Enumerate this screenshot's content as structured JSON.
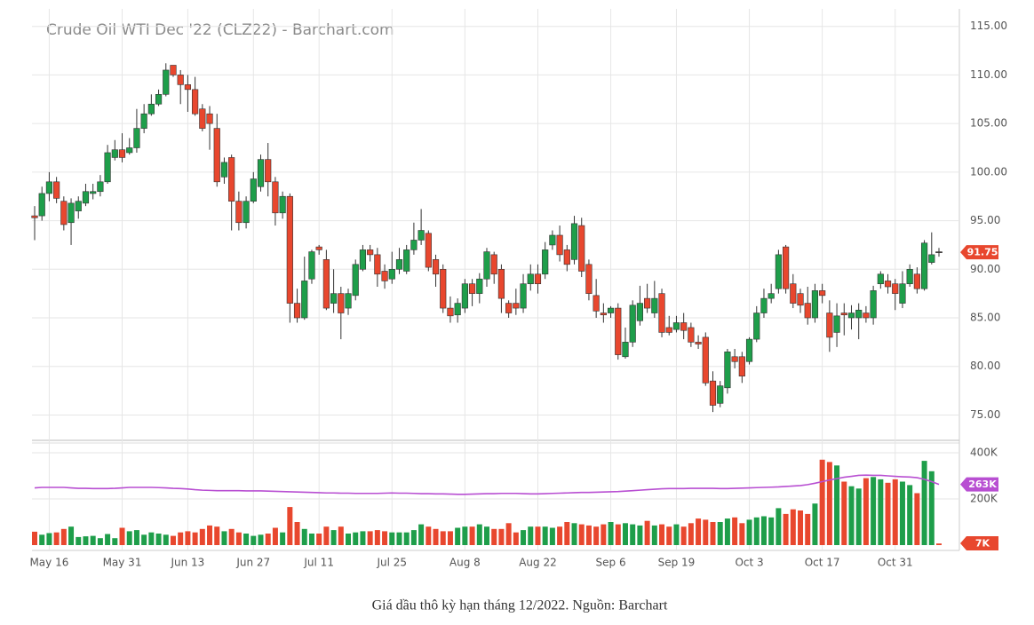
{
  "chart_data": {
    "type": "candlestick",
    "title": "Crude Oil WTI Dec '22 (CLZ22) - Barchart.com",
    "categories": [
      null,
      null,
      "May 16",
      null,
      null,
      null,
      null,
      null,
      null,
      null,
      null,
      null,
      "May 31",
      null,
      null,
      null,
      null,
      null,
      null,
      null,
      null,
      "Jun 13",
      null,
      null,
      null,
      null,
      null,
      null,
      null,
      null,
      "Jun 27",
      null,
      null,
      null,
      null,
      null,
      null,
      null,
      null,
      "Jul 11",
      null,
      null,
      null,
      null,
      null,
      null,
      null,
      null,
      null,
      "Jul 25",
      null,
      null,
      null,
      null,
      null,
      null,
      null,
      null,
      null,
      "Aug 8",
      null,
      null,
      null,
      null,
      null,
      null,
      null,
      null,
      null,
      "Aug 22",
      null,
      null,
      null,
      null,
      null,
      null,
      null,
      null,
      null,
      "Sep 6",
      null,
      null,
      null,
      null,
      null,
      null,
      null,
      null,
      "Sep 19",
      null,
      null,
      null,
      null,
      null,
      null,
      null,
      null,
      null,
      "Oct 3",
      null,
      null,
      null,
      null,
      null,
      null,
      null,
      null,
      null,
      "Oct 17",
      null,
      null,
      null,
      null,
      null,
      null,
      null,
      null,
      null,
      "Oct 31",
      null,
      null,
      null,
      null,
      null,
      null
    ],
    "up_color": "#1e9e4a",
    "down_color": "#e8472e",
    "open": [
      95.5,
      95.5,
      97.8,
      99,
      97,
      94.8,
      96,
      96.8,
      97.8,
      98,
      99,
      101.5,
      102.3,
      102,
      102.5,
      104.5,
      106,
      107,
      108,
      111,
      110,
      109,
      108.5,
      106.5,
      106,
      104.5,
      99.5,
      101.5,
      97,
      94.8,
      97,
      98.5,
      101.3,
      99,
      95.8,
      97.5,
      86.5,
      85,
      89,
      92.3,
      91,
      86.5,
      87.5,
      86,
      87.3,
      90,
      92,
      91.5,
      89.8,
      89,
      90,
      89.8,
      92,
      93,
      93.7,
      91,
      90,
      86,
      85.3,
      86,
      88.5,
      87.5,
      89,
      91.5,
      90,
      86.5,
      86.5,
      86,
      88.5,
      89.5,
      89.5,
      92.5,
      93.5,
      92,
      91,
      94.5,
      90.5,
      87.3,
      85.5,
      85.5,
      86,
      81,
      82.5,
      84.7,
      87,
      85.5,
      87.5,
      84,
      83.8,
      84.5,
      84,
      82.5,
      83,
      78.5,
      76.2,
      77.8,
      81,
      81,
      80.5,
      82.8,
      85.5,
      87,
      88,
      92.3,
      88.5,
      87.5,
      86.5,
      85,
      87.8,
      85.5,
      83.5,
      85.5,
      85,
      85,
      85.5,
      85,
      88.5,
      88.8,
      88.5,
      86.5,
      88.5,
      89.5,
      88,
      90.7,
      91.8
    ],
    "high": [
      96.5,
      98.5,
      100,
      99.5,
      97.5,
      97.3,
      97.5,
      98.8,
      98.8,
      99.7,
      102.8,
      103.3,
      104,
      103.5,
      106.5,
      107,
      108,
      108.5,
      111.2,
      111,
      110.5,
      110,
      109.8,
      107,
      106.8,
      106,
      101.5,
      101.8,
      98,
      97.5,
      100,
      101.8,
      103,
      99.5,
      98,
      97.8,
      88,
      91.3,
      92,
      92.5,
      92,
      90,
      88.2,
      88,
      91,
      92.5,
      92.5,
      92.2,
      90.5,
      91.8,
      92.2,
      92.5,
      94.8,
      96.2,
      94,
      91.5,
      90.5,
      87.2,
      87,
      89,
      89,
      89.6,
      92.2,
      91.8,
      90.5,
      86.8,
      88,
      89.5,
      90.5,
      90.5,
      92.8,
      94,
      94.5,
      92.5,
      95.5,
      95.3,
      91,
      89,
      86.5,
      86.2,
      86.5,
      84,
      86.8,
      88.3,
      88.5,
      88.8,
      88,
      85.2,
      85.2,
      85.5,
      84.5,
      83.2,
      83.5,
      79.5,
      78.5,
      81.8,
      81.8,
      81.5,
      83,
      86.2,
      88,
      88.5,
      92,
      92.5,
      89.5,
      88,
      88.2,
      88.5,
      88.5,
      86.8,
      86.5,
      86.5,
      86.3,
      86.5,
      86.2,
      88.3,
      89.8,
      89.5,
      89,
      89.8,
      90.5,
      90.2,
      93,
      93.8,
      92.2
    ],
    "low": [
      93,
      95,
      97,
      96.8,
      94,
      92.5,
      95.2,
      96.5,
      97.2,
      97.5,
      98.8,
      101.2,
      101,
      101.8,
      102,
      104,
      105.8,
      106.8,
      107.8,
      109.8,
      107,
      106.2,
      105.8,
      104.2,
      102.3,
      98.5,
      98.8,
      94,
      94,
      94.2,
      96.8,
      98,
      97.5,
      94.5,
      95.2,
      84.5,
      84.5,
      84.8,
      88.5,
      91.5,
      85.8,
      85.5,
      82.8,
      85.3,
      86.8,
      89.8,
      90.8,
      88.2,
      88,
      88.5,
      89.5,
      89.5,
      91.5,
      92.5,
      89.8,
      88.2,
      85.5,
      84.5,
      84.5,
      85.5,
      86.2,
      86.5,
      88.2,
      88.5,
      85.5,
      85,
      85.3,
      85.5,
      87.8,
      87.5,
      89,
      92,
      90.8,
      89.8,
      90.5,
      89.2,
      86.8,
      85,
      84.5,
      85,
      80.7,
      80.8,
      82,
      84.2,
      85.5,
      85,
      83,
      83.2,
      83.5,
      82.8,
      82,
      81.8,
      78,
      75.3,
      75.8,
      77.2,
      79.8,
      78.3,
      80.2,
      82.5,
      85,
      86.5,
      87.5,
      87.5,
      86,
      85.5,
      84.3,
      84.5,
      86.5,
      81.5,
      82,
      83.2,
      83.8,
      82.8,
      84.5,
      84.3,
      88,
      87.5,
      85.8,
      86,
      88.2,
      87.5,
      87.8,
      90.5,
      91.3
    ],
    "close": [
      95.3,
      97.8,
      99,
      97.3,
      94.6,
      96.8,
      97,
      98,
      98,
      99,
      102,
      102.3,
      101.5,
      102.5,
      104.5,
      106,
      107,
      108,
      110.5,
      110,
      109,
      108.5,
      106,
      104.5,
      105,
      99,
      101,
      97,
      94.8,
      97,
      99.3,
      101.3,
      99,
      95.8,
      97.5,
      86.5,
      85,
      88.8,
      91.8,
      92,
      86,
      87.5,
      85.5,
      87.5,
      90.5,
      92,
      91.5,
      89.5,
      88.8,
      90,
      91,
      92,
      93,
      94,
      90.2,
      89.5,
      86,
      85.2,
      86.5,
      88.5,
      87.5,
      89,
      91.8,
      89.5,
      87,
      85.5,
      86,
      88.5,
      89.5,
      88.5,
      92,
      93.5,
      91.5,
      90.5,
      94.7,
      89.8,
      87.5,
      85.7,
      85.3,
      86,
      81.2,
      82.5,
      86.3,
      86.5,
      86,
      87,
      83.5,
      83.5,
      84.5,
      83.7,
      82.5,
      82.3,
      78.3,
      76,
      78,
      81.5,
      80.5,
      79,
      82.8,
      85.5,
      87,
      87.5,
      91.5,
      88,
      86.5,
      86.3,
      85,
      87.8,
      87.3,
      83,
      85.2,
      85.3,
      85.5,
      85.8,
      85,
      87.8,
      89.5,
      88.2,
      87.5,
      88.5,
      90,
      88,
      92.7,
      91.5,
      91.75
    ],
    "ylim": [
      72.3,
      116.8
    ],
    "yticks": [
      {
        "value": 75,
        "label": "75.00"
      },
      {
        "value": 80,
        "label": "80.00"
      },
      {
        "value": 85,
        "label": "85.00"
      },
      {
        "value": 90,
        "label": "90.00"
      },
      {
        "value": 95,
        "label": "95.00"
      },
      {
        "value": 100,
        "label": "100.00"
      },
      {
        "value": 105,
        "label": "105.00"
      },
      {
        "value": 110,
        "label": "110.00"
      },
      {
        "value": 115,
        "label": "115.00"
      }
    ],
    "grid": true,
    "volume": {
      "type": "bar",
      "values": [
        58,
        45,
        52,
        55,
        70,
        80,
        35,
        38,
        40,
        30,
        48,
        30,
        75,
        60,
        65,
        45,
        55,
        50,
        45,
        40,
        55,
        60,
        55,
        70,
        85,
        80,
        60,
        70,
        55,
        50,
        40,
        45,
        50,
        75,
        55,
        165,
        100,
        70,
        50,
        50,
        80,
        65,
        80,
        50,
        55,
        60,
        60,
        65,
        60,
        55,
        55,
        55,
        65,
        90,
        80,
        70,
        60,
        60,
        75,
        80,
        80,
        90,
        80,
        70,
        70,
        95,
        55,
        65,
        80,
        80,
        80,
        75,
        80,
        100,
        95,
        90,
        85,
        80,
        90,
        100,
        90,
        95,
        90,
        85,
        105,
        85,
        90,
        80,
        90,
        80,
        95,
        115,
        110,
        100,
        100,
        115,
        120,
        95,
        110,
        120,
        125,
        120,
        160,
        135,
        155,
        150,
        135,
        180,
        370,
        360,
        345,
        275,
        255,
        245,
        290,
        295,
        285,
        270,
        285,
        275,
        260,
        225,
        365,
        320,
        7
      ],
      "last_value_label": "7K",
      "ylim": [
        0,
        430
      ],
      "yticks": [
        {
          "value": 200,
          "label": "200K"
        },
        {
          "value": 400,
          "label": "400K"
        }
      ],
      "ma": {
        "color": "#b84fd2",
        "last_value_label": "263K",
        "values": [
          248,
          250,
          250,
          250,
          250,
          248,
          246,
          246,
          245,
          245,
          245,
          246,
          248,
          250,
          250,
          250,
          250,
          249,
          248,
          246,
          245,
          243,
          240,
          238,
          237,
          236,
          236,
          236,
          236,
          235,
          235,
          235,
          234,
          233,
          232,
          231,
          230,
          229,
          228,
          227,
          226,
          226,
          225,
          225,
          224,
          224,
          224,
          224,
          225,
          226,
          225,
          225,
          224,
          223,
          223,
          222,
          222,
          221,
          220,
          220,
          221,
          222,
          223,
          223,
          224,
          224,
          224,
          223,
          222,
          222,
          223,
          224,
          225,
          226,
          227,
          228,
          228,
          229,
          230,
          231,
          232,
          234,
          236,
          238,
          240,
          242,
          244,
          245,
          245,
          245,
          246,
          246,
          246,
          246,
          245,
          245,
          246,
          247,
          248,
          249,
          250,
          251,
          252,
          254,
          256,
          258,
          262,
          268,
          275,
          282,
          288,
          294,
          298,
          302,
          303,
          302,
          302,
          300,
          298,
          296,
          295,
          292,
          285,
          275,
          263
        ]
      }
    }
  },
  "caption": "Giá dầu thô kỳ hạn tháng 12/2022. Nguồn: Barchart"
}
